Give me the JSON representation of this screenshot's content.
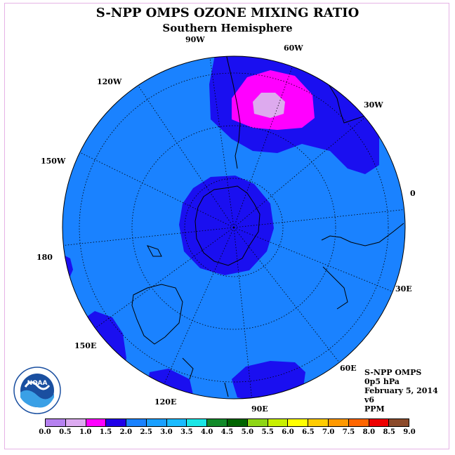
{
  "header": {
    "title": "S-NPP OMPS OZONE MIXING RATIO",
    "subtitle": "Southern Hemisphere"
  },
  "map": {
    "projection": "polar-stereographic-south",
    "colors": {
      "background_field": "#1a82ff",
      "level_1_5": "#1a0ff0",
      "level_1_0": "#ff00ff",
      "level_0_5": "#ddaaee",
      "coast": "#000000",
      "grid": "#000000"
    },
    "longitude_labels": [
      "90W",
      "60W",
      "30W",
      "0",
      "30E",
      "60E",
      "90E",
      "120E",
      "150E",
      "180",
      "150W",
      "120W"
    ]
  },
  "info": {
    "line1": "S-NPP OMPS",
    "line2": "0p5 hPa",
    "line3": "February 5, 2014",
    "line4": "v6",
    "line5": "PPM"
  },
  "legend": {
    "colors": [
      "#b681f0",
      "#dcaaf0",
      "#ff00ff",
      "#2000e8",
      "#1a82ff",
      "#1aa0ff",
      "#1abbff",
      "#1ae6e6",
      "#128a2a",
      "#006400",
      "#8ed616",
      "#c8f000",
      "#ffff00",
      "#ffcc00",
      "#ff9900",
      "#ff6600",
      "#ee0000",
      "#8b4a2a"
    ],
    "ticks": [
      "0.0",
      "0.5",
      "1.0",
      "1.5",
      "2.0",
      "2.5",
      "3.0",
      "3.5",
      "4.0",
      "4.5",
      "5.0",
      "5.5",
      "6.0",
      "6.5",
      "7.0",
      "7.5",
      "8.0",
      "8.5",
      "9.0"
    ]
  },
  "logo": {
    "text": "NOAA"
  }
}
